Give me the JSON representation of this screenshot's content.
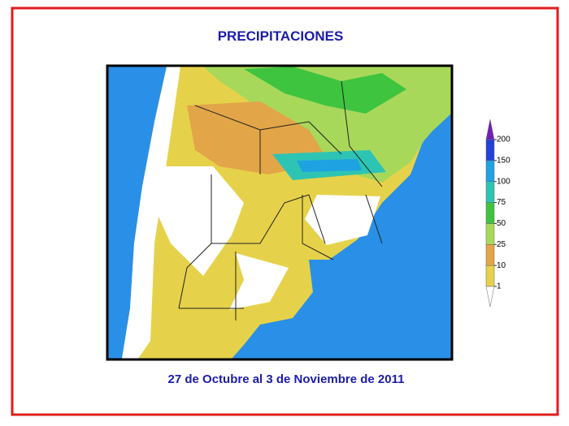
{
  "title": "PRECIPITACIONES",
  "subtitle": "27 de Octubre al 3 de Noviembre de 2011",
  "legend": {
    "levels": [
      1,
      10,
      25,
      50,
      75,
      100,
      150,
      200
    ],
    "colors": [
      "#e6d24a",
      "#e2a548",
      "#a8d85a",
      "#3ec43e",
      "#2ec4b4",
      "#1fa2e2",
      "#2440d8"
    ],
    "below_color": "#ffffff",
    "above_color": "#7020b8"
  }
}
